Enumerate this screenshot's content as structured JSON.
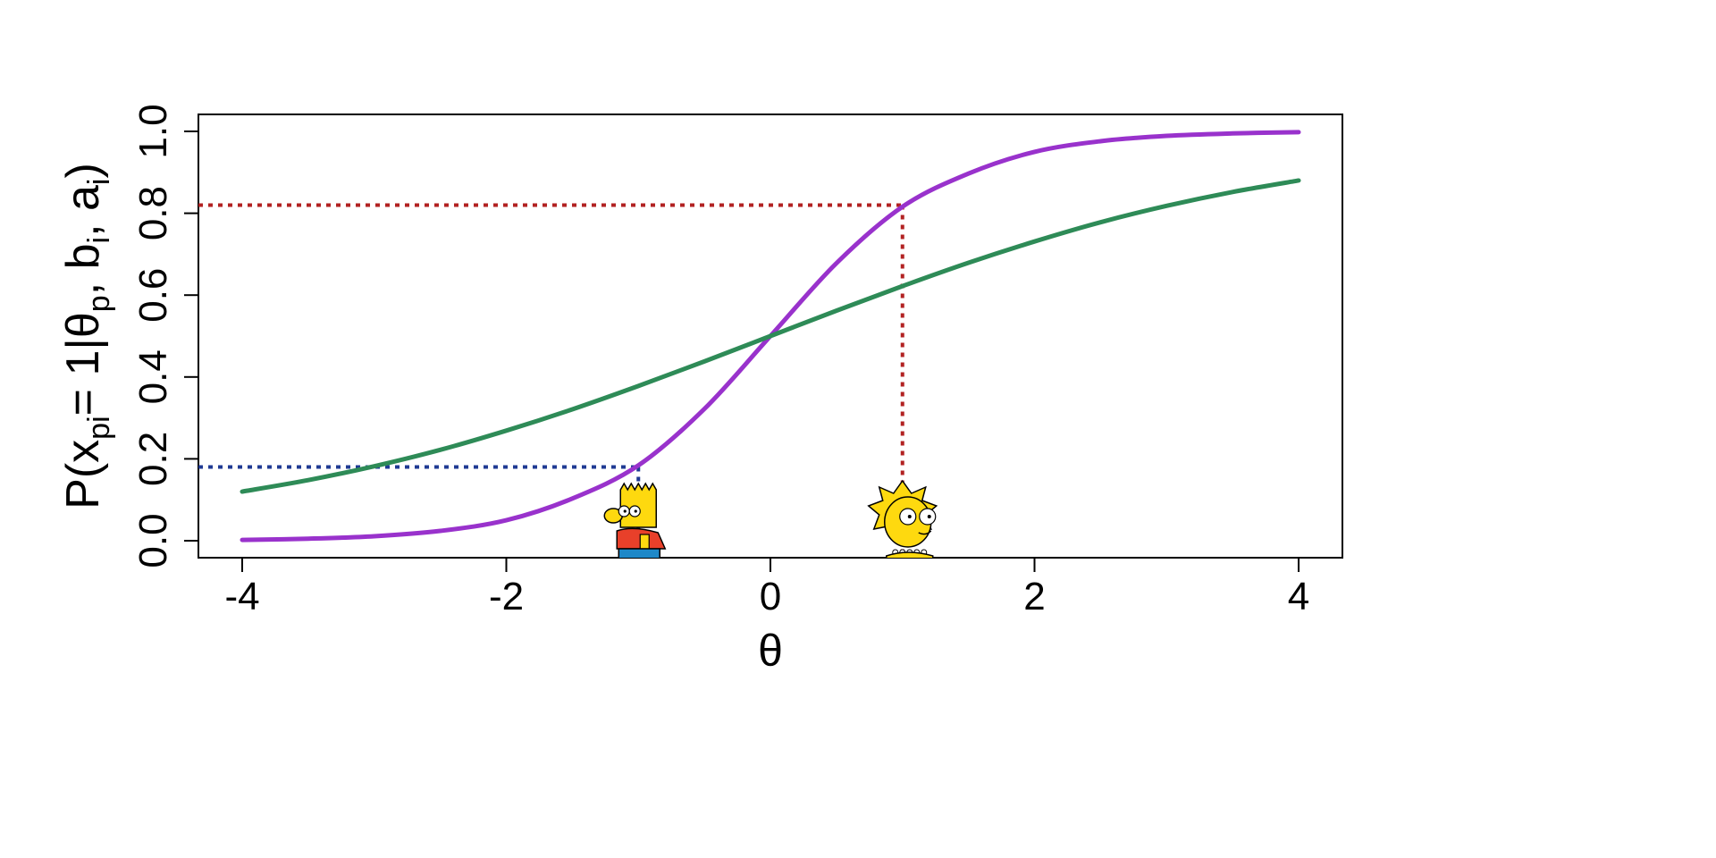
{
  "chart_data": {
    "type": "line",
    "title": "",
    "xlabel": "θ",
    "ylabel": {
      "prefix": "P(x",
      "sub1": "pi",
      "middle": "= 1|θ",
      "sub2": "p",
      "sep1": ", b",
      "sub3": "i",
      "sep2": ", a",
      "sub4": "i",
      "suffix": ")"
    },
    "xlim": [
      -4,
      4
    ],
    "ylim": [
      0,
      1
    ],
    "x_ticks": [
      -4,
      -2,
      0,
      2,
      4
    ],
    "x_tick_labels": [
      "-4",
      "-2",
      "0",
      "2",
      "4"
    ],
    "y_ticks": [
      0,
      0.2,
      0.4,
      0.6,
      0.8,
      1.0
    ],
    "y_tick_labels": [
      "0.0",
      "0.2",
      "0.4",
      "0.6",
      "0.8",
      "1.0"
    ],
    "grid": false,
    "legend": "none",
    "series": [
      {
        "color": "#9932CC",
        "x": [
          -4,
          -3.5,
          -3,
          -2.5,
          -2,
          -1.5,
          -1,
          -0.5,
          0,
          0.5,
          1,
          1.5,
          2,
          2.5,
          3,
          3.5,
          4
        ],
        "y": [
          0.002,
          0.005,
          0.011,
          0.024,
          0.05,
          0.103,
          0.184,
          0.322,
          0.5,
          0.678,
          0.816,
          0.897,
          0.95,
          0.976,
          0.989,
          0.995,
          0.998
        ]
      },
      {
        "color": "#2E8B57",
        "x": [
          -4,
          -3.5,
          -3,
          -2.5,
          -2,
          -1.5,
          -1,
          -0.5,
          0,
          0.5,
          1,
          1.5,
          2,
          2.5,
          3,
          3.5,
          4
        ],
        "y": [
          0.12,
          0.148,
          0.182,
          0.222,
          0.269,
          0.321,
          0.378,
          0.438,
          0.5,
          0.562,
          0.622,
          0.679,
          0.731,
          0.778,
          0.818,
          0.852,
          0.88
        ]
      }
    ],
    "reference_lines": [
      {
        "color": "#1F3A93",
        "x": -1,
        "y": 0.18
      },
      {
        "color": "#B22222",
        "x": 1,
        "y": 0.82
      }
    ],
    "markers": [
      {
        "icon": "bart-character-icon",
        "x": -1
      },
      {
        "icon": "lisa-character-icon",
        "x": 1
      }
    ]
  }
}
